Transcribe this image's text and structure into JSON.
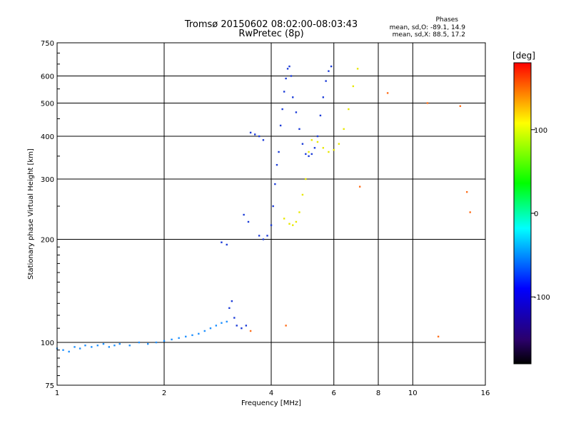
{
  "title_line1": "Tromsø 20150602 08:02:00-08:03:43",
  "title_line2": "RwPretec (8p)",
  "phases": {
    "header": "Phases",
    "line_o": "mean, sd,O: -89.1, 14.9",
    "line_x": "mean, sd,X: 88.5, 17.2"
  },
  "chart_data": {
    "type": "scatter",
    "xlabel": "Frequency [MHz]",
    "ylabel": "Stationary phase Virtual Height [km]",
    "x_scale": "log",
    "y_scale": "log",
    "xlim": [
      1,
      16
    ],
    "ylim": [
      75,
      750
    ],
    "x_ticks": [
      1,
      2,
      4,
      6,
      8,
      10,
      16
    ],
    "x_tick_labels": [
      "1",
      "2",
      "4",
      "6",
      "8",
      "10",
      "16"
    ],
    "y_ticks": [
      75,
      100,
      200,
      300,
      400,
      500,
      600,
      750
    ],
    "y_tick_labels": [
      "75",
      "100",
      "200",
      "300",
      "400",
      "500",
      "600",
      "750"
    ],
    "grid": true,
    "colorbar": {
      "label": "[deg]",
      "range": [
        -180,
        180
      ],
      "ticks": [
        100,
        0,
        -100
      ],
      "tick_labels": [
        "100",
        "0",
        "-100"
      ],
      "colormap": "rainbow"
    },
    "series": [
      {
        "color": "#1e90ff",
        "phase_deg": -115,
        "points": [
          [
            1.0,
            96
          ],
          [
            1.04,
            95
          ],
          [
            1.08,
            94
          ],
          [
            1.12,
            97
          ],
          [
            1.16,
            96
          ],
          [
            1.2,
            98
          ],
          [
            1.25,
            97
          ],
          [
            1.3,
            98
          ],
          [
            1.35,
            99
          ],
          [
            1.4,
            97
          ],
          [
            1.45,
            98
          ],
          [
            1.5,
            99
          ],
          [
            1.6,
            98
          ],
          [
            1.7,
            100
          ],
          [
            1.8,
            99
          ],
          [
            1.9,
            100
          ],
          [
            2.0,
            101
          ],
          [
            2.1,
            102
          ],
          [
            2.2,
            103
          ],
          [
            2.3,
            104
          ],
          [
            2.4,
            105
          ],
          [
            2.5,
            106
          ],
          [
            2.6,
            108
          ],
          [
            2.7,
            110
          ],
          [
            2.8,
            112
          ],
          [
            2.9,
            114
          ],
          [
            3.0,
            115
          ]
        ]
      },
      {
        "color": "#1c3cd8",
        "phase_deg": -95,
        "points": [
          [
            2.9,
            196
          ],
          [
            3.0,
            193
          ],
          [
            3.05,
            126
          ],
          [
            3.1,
            132
          ],
          [
            3.15,
            118
          ],
          [
            3.2,
            112
          ],
          [
            3.3,
            110
          ],
          [
            3.4,
            112
          ],
          [
            3.35,
            236
          ],
          [
            3.45,
            225
          ],
          [
            3.5,
            410
          ],
          [
            3.6,
            405
          ],
          [
            3.7,
            400
          ],
          [
            3.8,
            390
          ],
          [
            3.7,
            205
          ],
          [
            3.8,
            200
          ],
          [
            3.9,
            205
          ],
          [
            4.0,
            220
          ],
          [
            4.05,
            250
          ],
          [
            4.1,
            290
          ],
          [
            4.15,
            330
          ],
          [
            4.2,
            360
          ],
          [
            4.25,
            430
          ],
          [
            4.3,
            480
          ],
          [
            4.35,
            540
          ],
          [
            4.4,
            590
          ],
          [
            4.45,
            630
          ],
          [
            4.5,
            640
          ],
          [
            4.55,
            600
          ],
          [
            4.6,
            520
          ],
          [
            4.7,
            470
          ],
          [
            4.8,
            420
          ],
          [
            4.9,
            380
          ],
          [
            5.0,
            355
          ],
          [
            5.1,
            350
          ],
          [
            5.2,
            355
          ],
          [
            5.3,
            370
          ],
          [
            5.4,
            400
          ],
          [
            5.5,
            460
          ],
          [
            5.6,
            520
          ],
          [
            5.7,
            580
          ],
          [
            5.8,
            620
          ],
          [
            5.9,
            640
          ]
        ]
      },
      {
        "color": "#e8e800",
        "phase_deg": 105,
        "points": [
          [
            4.35,
            230
          ],
          [
            4.5,
            222
          ],
          [
            4.6,
            220
          ],
          [
            4.7,
            225
          ],
          [
            4.8,
            240
          ],
          [
            4.9,
            270
          ],
          [
            5.0,
            300
          ],
          [
            5.1,
            360
          ],
          [
            5.2,
            390
          ],
          [
            5.4,
            385
          ],
          [
            5.6,
            370
          ],
          [
            5.8,
            360
          ],
          [
            6.0,
            365
          ],
          [
            6.2,
            380
          ],
          [
            6.4,
            420
          ],
          [
            6.6,
            480
          ],
          [
            6.8,
            560
          ],
          [
            7.0,
            630
          ]
        ]
      },
      {
        "color": "#ff6f1c",
        "phase_deg": 140,
        "points": [
          [
            3.5,
            108
          ],
          [
            4.4,
            112
          ],
          [
            7.1,
            285
          ],
          [
            8.5,
            535
          ],
          [
            11,
            500
          ],
          [
            13.6,
            490
          ],
          [
            14.2,
            275
          ],
          [
            14.5,
            240
          ],
          [
            11.8,
            104
          ]
        ]
      }
    ]
  }
}
